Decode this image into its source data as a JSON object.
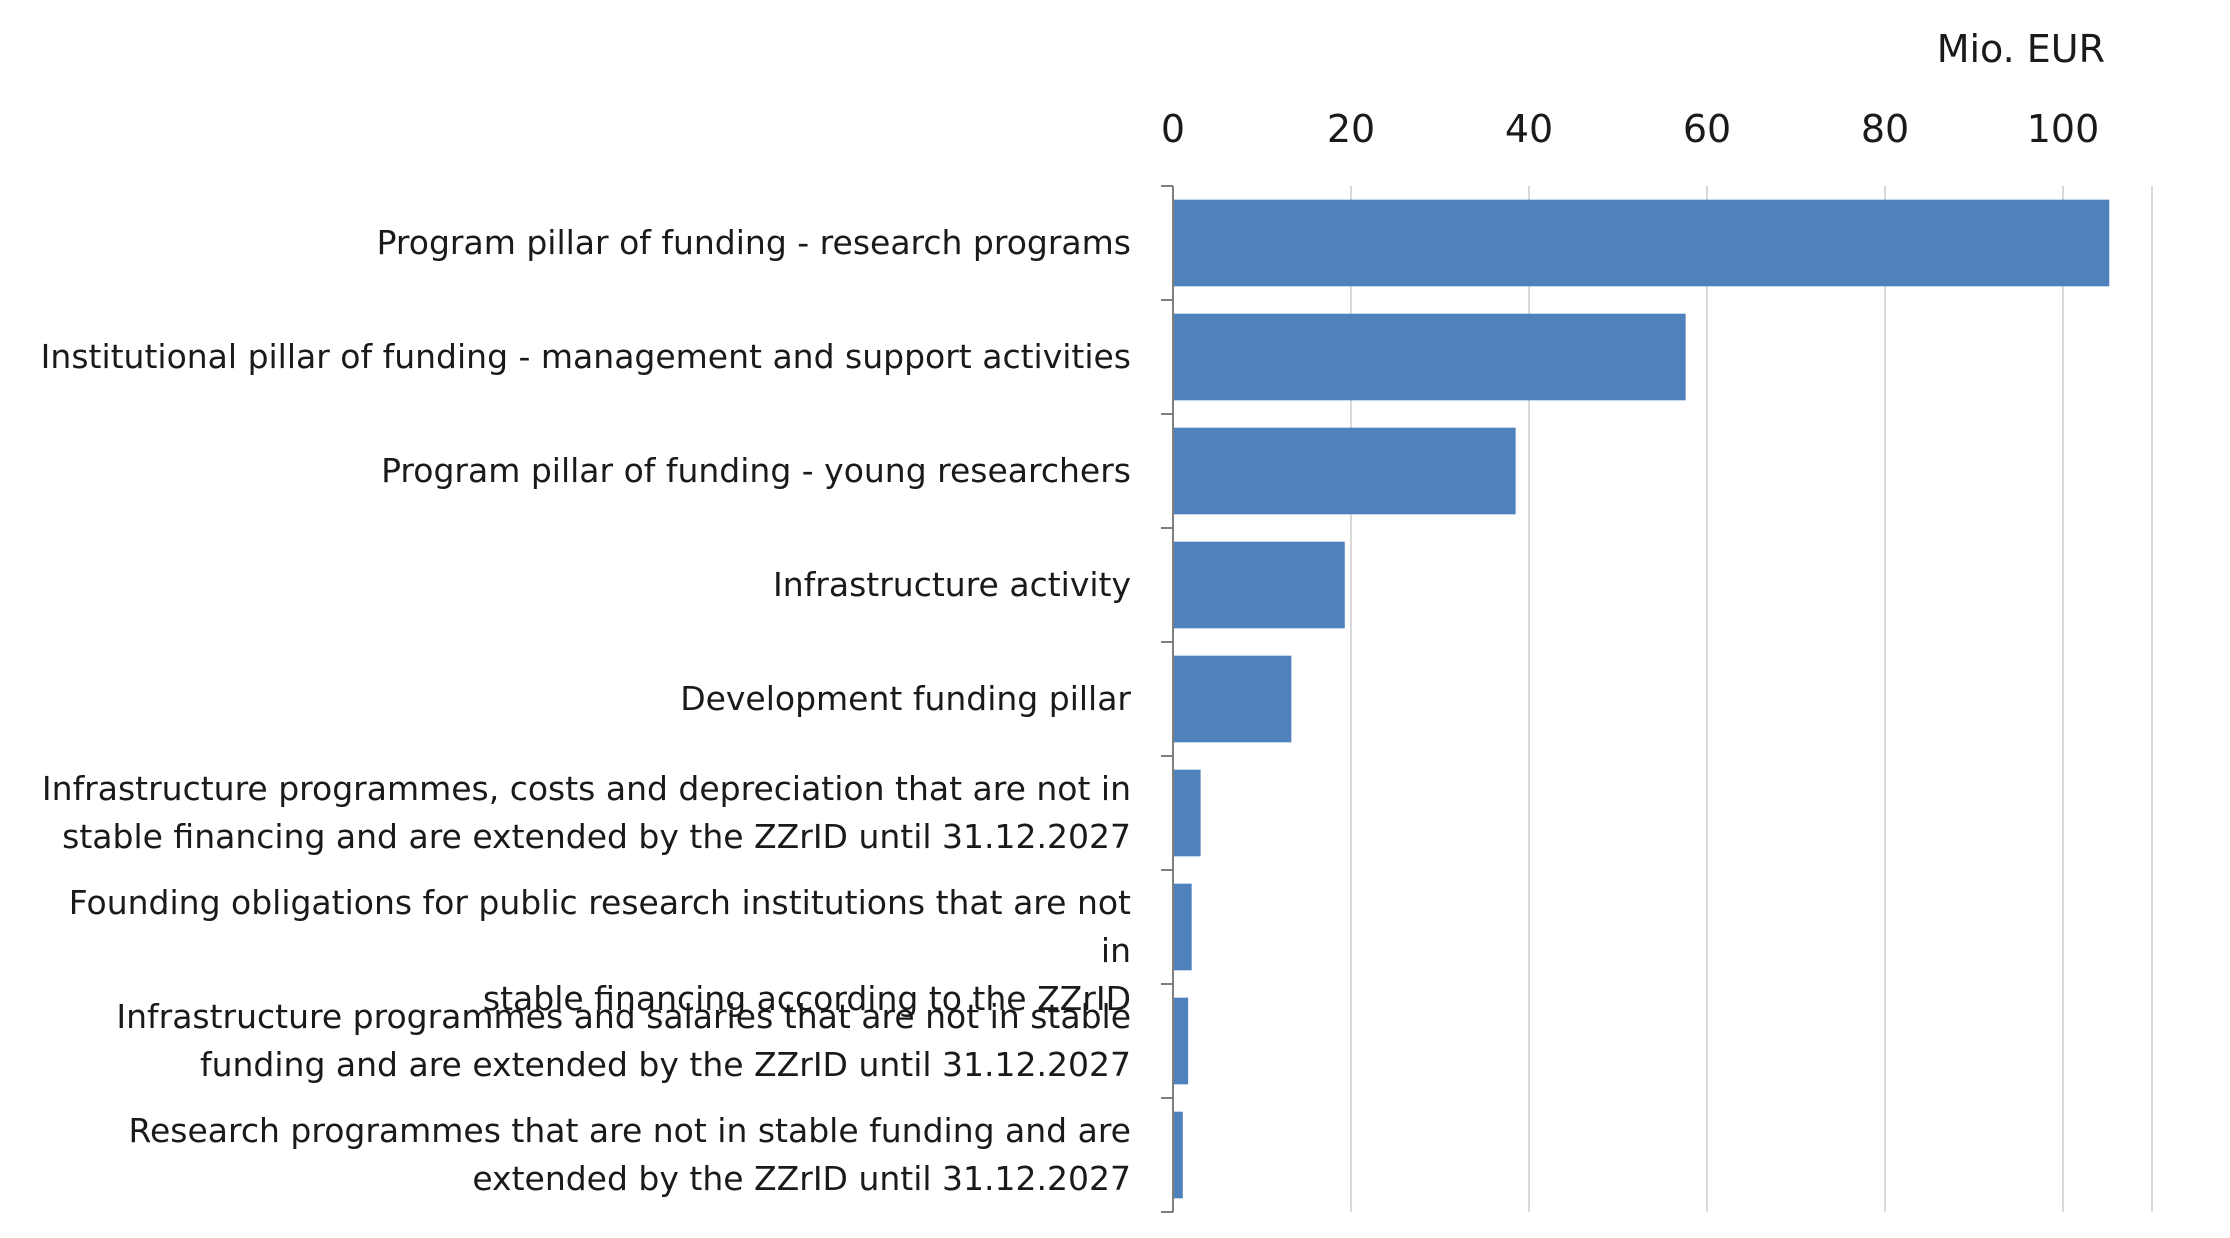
{
  "chart_data": {
    "type": "bar",
    "orientation": "horizontal",
    "unit_label": "Mio. EUR",
    "categories": [
      "Program pillar of funding -  research programs",
      "Institutional pillar of funding - management and support activities",
      "Program pillar of funding -  young researchers",
      "Infrastructure activity",
      "Development funding pillar",
      "Infrastructure programmes, costs and depreciation that are not in\nstable financing and are extended by the ZZrID until 31.12.2027",
      "Founding obligations for public research institutions that are not in\nstable financing according to the ZZrID",
      "Infrastructure programmes and salaries that are not in stable\nfunding and are extended by the ZZrID until 31.12.2027",
      "Research programmes that are not in stable funding and are\nextended by the ZZrID until 31.12.2027"
    ],
    "values": [
      105.2,
      57.6,
      38.5,
      19.3,
      13.3,
      3.1,
      2.1,
      1.7,
      1.1
    ],
    "xlim": [
      0,
      110
    ],
    "xticks": [
      "0",
      "20",
      "40",
      "60",
      "80",
      "100"
    ],
    "xtick_values": [
      0,
      20,
      40,
      60,
      80,
      100
    ],
    "axis_position": "top",
    "grid": true,
    "colors": {
      "bar": "#4f81bd",
      "grid": "#d9d9d9",
      "axis": "#7f7f7f"
    }
  }
}
